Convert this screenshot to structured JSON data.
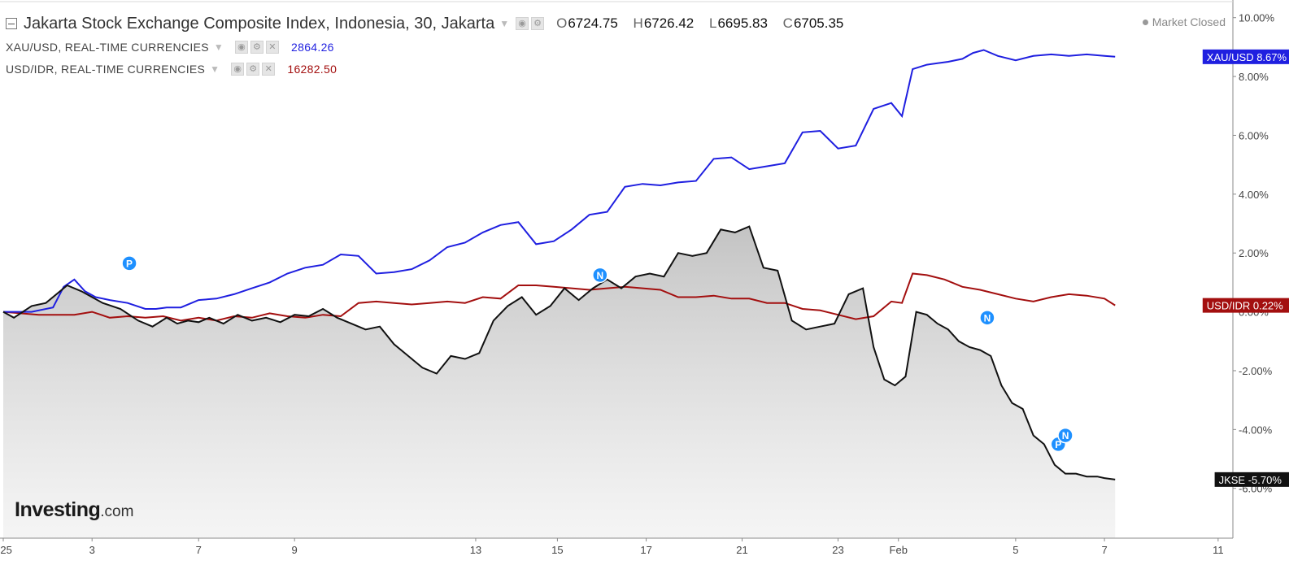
{
  "header": {
    "title": "Jakarta Stock Exchange Composite Index, Indonesia, 30, Jakarta",
    "ohlc": [
      {
        "key": "O",
        "value": "6724.75"
      },
      {
        "key": "H",
        "value": "6726.42"
      },
      {
        "key": "L",
        "value": "6695.83"
      },
      {
        "key": "C",
        "value": "6705.35"
      }
    ],
    "market_status": "Market Closed"
  },
  "overlays": [
    {
      "label": "XAU/USD, REAL-TIME CURRENCIES",
      "value": "2864.26",
      "color": "#1f1fe0"
    },
    {
      "label": "USD/IDR, REAL-TIME CURRENCIES",
      "value": "16282.50",
      "color": "#a30f0f"
    }
  ],
  "brand": {
    "name": "Investing",
    "suffix": ".com"
  },
  "markers": [
    {
      "letter": "P",
      "x": 3.55,
      "y": 1.65
    },
    {
      "letter": "N",
      "x": 16.8,
      "y": 1.25
    },
    {
      "letter": "N",
      "x": 27.7,
      "y": -0.2
    },
    {
      "letter": "P",
      "x": 29.7,
      "y": -4.5
    },
    {
      "letter": "N",
      "x": 29.9,
      "y": -4.2
    }
  ],
  "chart_data": {
    "type": "line",
    "title": "Jakarta Stock Exchange Composite Index, Indonesia, 30, Jakarta",
    "xlabel": "",
    "ylabel": "",
    "x_axis_note": "trading-day index; day 0 = first bar shown (start of Jan 2025)",
    "x_ticks": [
      {
        "x": 0,
        "label": "025"
      },
      {
        "x": 2.5,
        "label": "3"
      },
      {
        "x": 5.5,
        "label": "7"
      },
      {
        "x": 8.2,
        "label": "9"
      },
      {
        "x": 13.3,
        "label": "13"
      },
      {
        "x": 15.6,
        "label": "15"
      },
      {
        "x": 18.1,
        "label": "17"
      },
      {
        "x": 20.8,
        "label": "21"
      },
      {
        "x": 23.5,
        "label": "23"
      },
      {
        "x": 25.2,
        "label": "Feb"
      },
      {
        "x": 28.5,
        "label": "5"
      },
      {
        "x": 31.0,
        "label": "7"
      },
      {
        "x": 34.2,
        "label": "11"
      }
    ],
    "y_ticks": [
      10,
      8,
      6,
      4,
      2,
      0,
      -2,
      -4,
      -6
    ],
    "y_tick_format": "%",
    "ylim": [
      -7.5,
      10.6
    ],
    "xlim": [
      0,
      35
    ],
    "grid": false,
    "series": [
      {
        "name": "XAU/USD",
        "color": "#1f1fe0",
        "last_label": "8.67%",
        "x": [
          0,
          0.8,
          1.4,
          1.7,
          2.0,
          2.3,
          2.6,
          3.0,
          3.5,
          4.0,
          4.3,
          4.6,
          5.0,
          5.5,
          6.0,
          6.5,
          7.0,
          7.5,
          8.0,
          8.5,
          9.0,
          9.5,
          10.0,
          10.5,
          11.0,
          11.5,
          12.0,
          12.5,
          13.0,
          13.5,
          14.0,
          14.5,
          15.0,
          15.5,
          16.0,
          16.5,
          17.0,
          17.5,
          18.0,
          18.5,
          19.0,
          19.5,
          20.0,
          20.5,
          21.0,
          21.5,
          22.0,
          22.5,
          23.0,
          23.5,
          24.0,
          24.5,
          25.0,
          25.3,
          25.6,
          26.0,
          26.3,
          26.6,
          27.0,
          27.3,
          27.6,
          28.0,
          28.5,
          29.0,
          29.5,
          30.0,
          30.5,
          31.0,
          31.3
        ],
        "values": [
          0,
          0,
          0.15,
          0.85,
          1.1,
          0.7,
          0.5,
          0.4,
          0.3,
          0.1,
          0.1,
          0.15,
          0.15,
          0.4,
          0.45,
          0.6,
          0.8,
          1.0,
          1.3,
          1.5,
          1.6,
          1.95,
          1.9,
          1.3,
          1.35,
          1.45,
          1.75,
          2.2,
          2.35,
          2.7,
          2.95,
          3.05,
          2.3,
          2.4,
          2.8,
          3.3,
          3.4,
          4.25,
          4.35,
          4.3,
          4.4,
          4.45,
          5.2,
          5.25,
          4.85,
          4.95,
          5.05,
          6.1,
          6.15,
          5.55,
          5.65,
          6.9,
          7.1,
          6.65,
          8.25,
          8.4,
          8.45,
          8.5,
          8.6,
          8.8,
          8.9,
          8.7,
          8.55,
          8.7,
          8.75,
          8.7,
          8.75,
          8.7,
          8.67
        ]
      },
      {
        "name": "USD/IDR",
        "color": "#a30f0f",
        "last_label": "0.22%",
        "x": [
          0,
          1.0,
          2.0,
          2.5,
          3.0,
          3.5,
          4.0,
          4.5,
          5.0,
          5.5,
          6.0,
          6.5,
          7.0,
          7.5,
          8.0,
          8.5,
          9.0,
          9.5,
          10.0,
          10.5,
          11.0,
          11.5,
          12.0,
          12.5,
          13.0,
          13.5,
          14.0,
          14.5,
          15.0,
          15.5,
          16.0,
          16.5,
          17.0,
          17.5,
          18.0,
          18.5,
          19.0,
          19.5,
          20.0,
          20.5,
          21.0,
          21.5,
          22.0,
          22.5,
          23.0,
          23.5,
          24.0,
          24.5,
          25.0,
          25.3,
          25.6,
          26.0,
          26.5,
          27.0,
          27.5,
          28.0,
          28.5,
          29.0,
          29.5,
          30.0,
          30.5,
          31.0,
          31.3
        ],
        "values": [
          0,
          -0.1,
          -0.1,
          0,
          -0.2,
          -0.15,
          -0.2,
          -0.15,
          -0.3,
          -0.2,
          -0.3,
          -0.15,
          -0.2,
          -0.05,
          -0.15,
          -0.2,
          -0.1,
          -0.15,
          0.3,
          0.35,
          0.3,
          0.25,
          0.3,
          0.35,
          0.3,
          0.5,
          0.45,
          0.9,
          0.9,
          0.85,
          0.8,
          0.75,
          0.8,
          0.85,
          0.8,
          0.75,
          0.5,
          0.5,
          0.55,
          0.45,
          0.45,
          0.3,
          0.3,
          0.1,
          0.05,
          -0.1,
          -0.25,
          -0.15,
          0.35,
          0.3,
          1.3,
          1.25,
          1.1,
          0.85,
          0.75,
          0.6,
          0.45,
          0.35,
          0.5,
          0.6,
          0.55,
          0.45,
          0.22
        ]
      },
      {
        "name": "JKSE",
        "color": "#111111",
        "last_label": "-5.70%",
        "x": [
          0,
          0.3,
          0.8,
          1.2,
          1.8,
          2.2,
          2.8,
          3.3,
          3.8,
          4.2,
          4.6,
          4.9,
          5.2,
          5.5,
          5.8,
          6.2,
          6.6,
          7.0,
          7.4,
          7.8,
          8.2,
          8.6,
          9.0,
          9.4,
          9.8,
          10.2,
          10.6,
          11.0,
          11.4,
          11.8,
          12.2,
          12.6,
          13.0,
          13.4,
          13.8,
          14.2,
          14.6,
          15.0,
          15.4,
          15.8,
          16.2,
          16.6,
          17.0,
          17.4,
          17.8,
          18.2,
          18.6,
          19.0,
          19.4,
          19.8,
          20.2,
          20.6,
          21.0,
          21.4,
          21.8,
          22.2,
          22.6,
          23.0,
          23.4,
          23.8,
          24.2,
          24.5,
          24.8,
          25.1,
          25.4,
          25.7,
          26.0,
          26.3,
          26.6,
          26.9,
          27.2,
          27.5,
          27.8,
          28.1,
          28.4,
          28.7,
          29.0,
          29.3,
          29.6,
          29.9,
          30.2,
          30.5,
          30.8,
          31.0,
          31.3
        ],
        "values": [
          0,
          -0.2,
          0.2,
          0.3,
          0.9,
          0.7,
          0.3,
          0.1,
          -0.3,
          -0.5,
          -0.2,
          -0.4,
          -0.3,
          -0.35,
          -0.2,
          -0.4,
          -0.1,
          -0.3,
          -0.2,
          -0.35,
          -0.1,
          -0.15,
          0.1,
          -0.2,
          -0.4,
          -0.6,
          -0.5,
          -1.1,
          -1.5,
          -1.9,
          -2.1,
          -1.5,
          -1.6,
          -1.4,
          -0.3,
          0.2,
          0.5,
          -0.1,
          0.2,
          0.8,
          0.4,
          0.8,
          1.1,
          0.8,
          1.2,
          1.3,
          1.2,
          2.0,
          1.9,
          2.0,
          2.8,
          2.7,
          2.9,
          1.5,
          1.4,
          -0.3,
          -0.6,
          -0.5,
          -0.4,
          0.6,
          0.8,
          -1.2,
          -2.3,
          -2.5,
          -2.2,
          0,
          -0.1,
          -0.4,
          -0.6,
          -1.0,
          -1.2,
          -1.3,
          -1.5,
          -2.5,
          -3.1,
          -3.3,
          -4.2,
          -4.5,
          -5.2,
          -5.5,
          -5.5,
          -5.6,
          -5.6,
          -5.65,
          -5.7
        ]
      }
    ]
  }
}
